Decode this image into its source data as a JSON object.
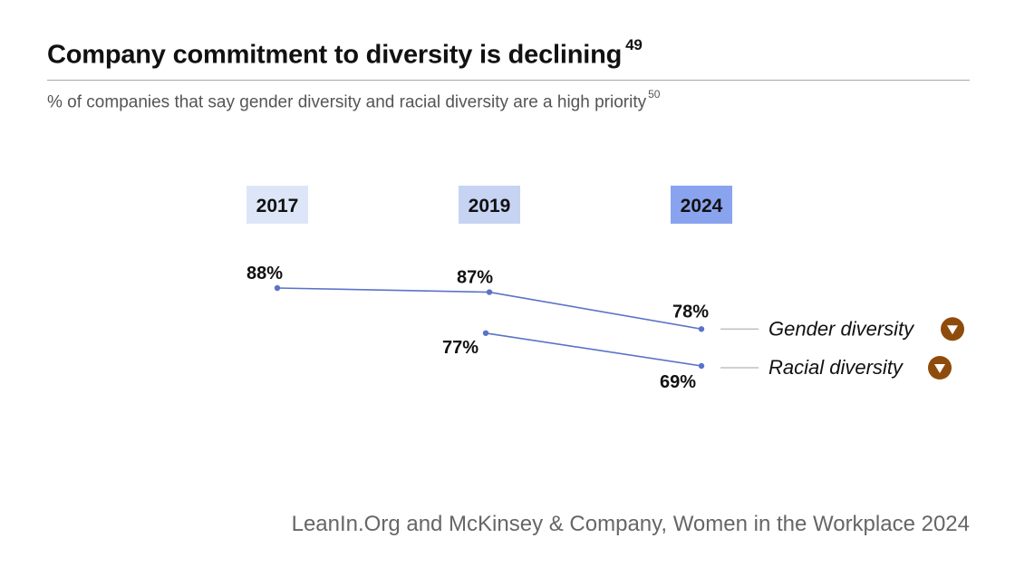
{
  "header": {
    "title": "Company commitment to diversity is declining",
    "title_note": "49",
    "subtitle": "% of companies that say gender diversity and racial diversity are a high priority",
    "subtitle_note": "50"
  },
  "source": "LeanIn.Org and McKinsey & Company, Women in the Workplace 2024",
  "colors": {
    "line": "#5a73c8",
    "year_2017": "#dde6f8",
    "year_2019": "#c6d3f3",
    "year_2024": "#8aa3ee",
    "decline_marker": "#8f4b0c",
    "connector": "#b5b5b5"
  },
  "chart_data": {
    "type": "line",
    "categories": [
      "2017",
      "2019",
      "2024"
    ],
    "series": [
      {
        "name": "Gender diversity",
        "values": [
          88,
          87,
          78
        ],
        "labels": [
          "88%",
          "87%",
          "78%"
        ],
        "trend_icon": "down-triangle-icon"
      },
      {
        "name": "Racial diversity",
        "values": [
          null,
          77,
          69
        ],
        "labels": [
          "",
          "77%",
          "69%"
        ],
        "trend_icon": "down-triangle-icon"
      }
    ],
    "unit": "%",
    "xlabel": "",
    "ylabel": "",
    "grid": false,
    "legend": "right, inline labels"
  }
}
